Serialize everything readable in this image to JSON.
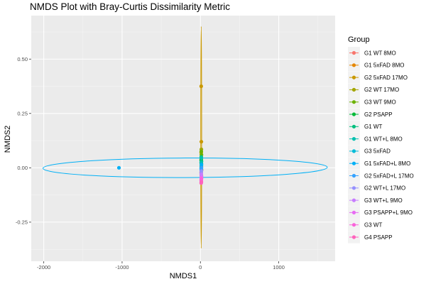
{
  "chart_data": {
    "type": "scatter",
    "title": "NMDS Plot with Bray-Curtis Dissimilarity Metric",
    "xlabel": "NMDS1",
    "ylabel": "NMDS2",
    "xlim": [
      -2160,
      1720
    ],
    "ylim": [
      -0.43,
      0.7
    ],
    "x_ticks": [
      -2000,
      -1000,
      0,
      1000
    ],
    "x_tick_labels": [
      "-2000",
      "-1000",
      "0",
      "1000"
    ],
    "y_ticks": [
      -0.25,
      0,
      0.25,
      0.5
    ],
    "y_tick_labels": [
      "-0.25",
      "0.00",
      "0.25",
      "0.50"
    ],
    "grid": true,
    "legend": {
      "title": "Group",
      "placement": "right"
    },
    "series": [
      {
        "name": "G1 WT 8MO",
        "color": "#F8766D",
        "points": [
          [
            10,
            -0.02
          ],
          [
            12,
            -0.035
          ]
        ]
      },
      {
        "name": "G1 5xFAD 8MO",
        "color": "#E58700",
        "points": [
          [
            12,
            0.005
          ],
          [
            14,
            -0.01
          ]
        ]
      },
      {
        "name": "G2 5xFAD 17MO",
        "color": "#C99800",
        "points": [
          [
            10,
            0.375
          ],
          [
            12,
            0.12
          ],
          [
            10,
            0.07
          ]
        ],
        "ellipse": {
          "cx": 10,
          "cy": 0.14,
          "rx": 6,
          "ry": 0.51,
          "angle": 0
        }
      },
      {
        "name": "G2 WT 17MO",
        "color": "#A3A500",
        "points": [
          [
            12,
            0.085
          ],
          [
            11,
            0.04
          ]
        ]
      },
      {
        "name": "G3 WT 9MO",
        "color": "#6BB100",
        "points": [
          [
            11,
            0.075
          ],
          [
            13,
            0.06
          ]
        ]
      },
      {
        "name": "G2 PSAPP",
        "color": "#00BA38",
        "points": [
          [
            10,
            0.035
          ],
          [
            12,
            0.02
          ]
        ]
      },
      {
        "name": "G1 WT",
        "color": "#00BF7D",
        "points": [
          [
            11,
            0.05
          ],
          [
            13,
            0.03
          ]
        ]
      },
      {
        "name": "G1 WT+L 8MO",
        "color": "#00C0AF",
        "points": [
          [
            10,
            0.025
          ],
          [
            12,
            0.045
          ]
        ]
      },
      {
        "name": "G3 5xFAD",
        "color": "#00BCD8",
        "points": [
          [
            12,
            0.01
          ],
          [
            10,
            0.0
          ]
        ]
      },
      {
        "name": "G1 5xFAD+L 8MO",
        "color": "#00B0F6",
        "points": [
          [
            -1040,
            0.0
          ],
          [
            11,
            -0.005
          ],
          [
            13,
            0.015
          ]
        ],
        "ellipse": {
          "cx": -195,
          "cy": 0.0,
          "rx": 1815,
          "ry": 0.045,
          "angle": -0.2
        }
      },
      {
        "name": "G2 5xFAD+L 17MO",
        "color": "#35A2FF",
        "points": [
          [
            11,
            -0.01
          ],
          [
            13,
            0.0
          ]
        ]
      },
      {
        "name": "G2 WT+L 17MO",
        "color": "#9590FF",
        "points": [
          [
            12,
            -0.015
          ],
          [
            10,
            -0.025
          ]
        ]
      },
      {
        "name": "G3 WT+L 9MO",
        "color": "#C77CFF",
        "points": [
          [
            11,
            -0.03
          ],
          [
            13,
            -0.04
          ]
        ]
      },
      {
        "name": "G3 PSAPP+L 9MO",
        "color": "#E76BF3",
        "points": [
          [
            12,
            -0.045
          ],
          [
            10,
            -0.055
          ]
        ]
      },
      {
        "name": "G3 WT",
        "color": "#FA62DB",
        "points": [
          [
            11,
            -0.06
          ],
          [
            13,
            -0.05
          ]
        ]
      },
      {
        "name": "G4 PSAPP",
        "color": "#FF62BC",
        "points": [
          [
            12,
            -0.065
          ],
          [
            10,
            -0.07
          ]
        ]
      }
    ]
  }
}
